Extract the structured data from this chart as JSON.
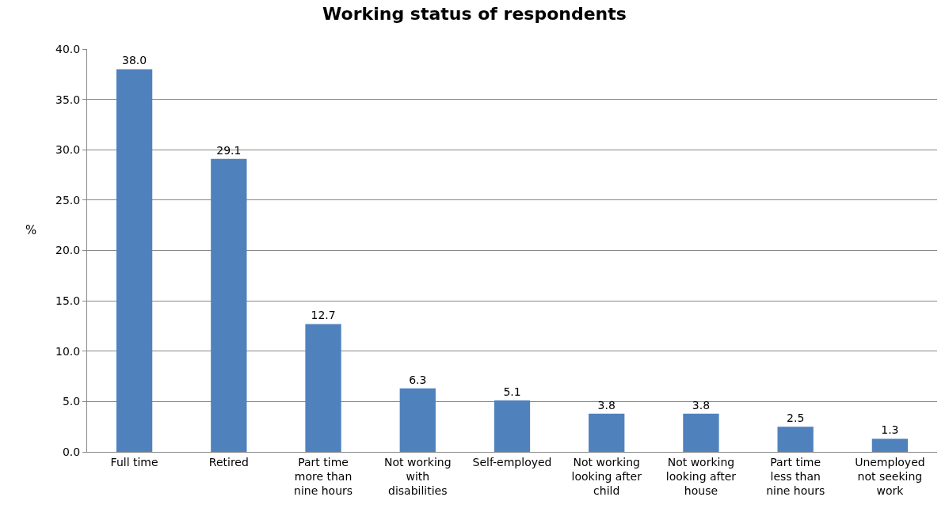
{
  "chart_data": {
    "type": "bar",
    "title": "Working status of respondents",
    "ylabel": "%",
    "categories": [
      "Full time",
      "Retired",
      "Part time more than nine hours",
      "Not working with disabilities",
      "Self-employed",
      "Not working looking after child",
      "Not working looking after house",
      "Part time less than nine hours",
      "Unemployed not seeking work"
    ],
    "values": [
      38.0,
      29.1,
      12.7,
      6.3,
      5.1,
      3.8,
      3.8,
      2.5,
      1.3
    ],
    "value_labels": [
      "38.0",
      "29.1",
      "12.7",
      "6.3",
      "5.1",
      "3.8",
      "3.8",
      "2.5",
      "1.3"
    ],
    "color": "#4f81bd",
    "ylim": [
      0,
      40
    ],
    "yticks": [
      {
        "value": 0,
        "label": "0.0"
      },
      {
        "value": 5,
        "label": "5.0"
      },
      {
        "value": 10,
        "label": "10.0"
      },
      {
        "value": 15,
        "label": "15.0"
      },
      {
        "value": 20,
        "label": "20.0"
      },
      {
        "value": 25,
        "label": "25.0"
      },
      {
        "value": 30,
        "label": "30.0"
      },
      {
        "value": 35,
        "label": "35.0"
      },
      {
        "value": 40,
        "label": "40.0"
      }
    ],
    "grid": "y"
  }
}
